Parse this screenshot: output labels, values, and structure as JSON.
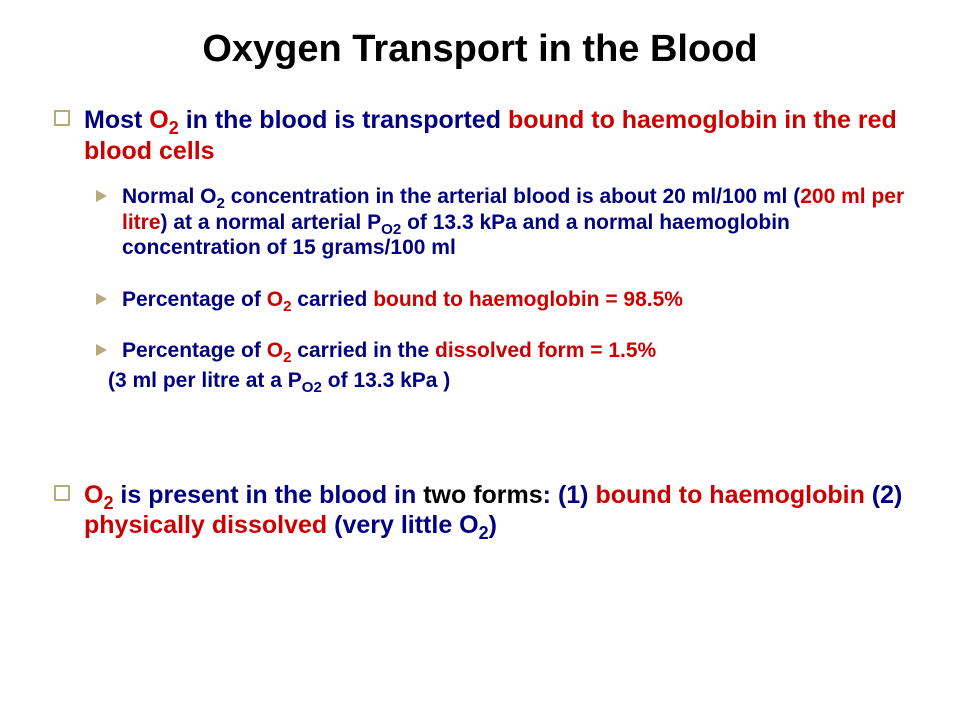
{
  "colors": {
    "navy": "#000080",
    "red": "#cc0000",
    "black": "#000000",
    "bullet_border": "#b9a87a",
    "background": "#ffffff"
  },
  "title": "Oxygen Transport in the Blood",
  "point1": {
    "p1a": "Most ",
    "p1b": "O",
    "p1b_sub": "2",
    "p1c": " in the blood is transported ",
    "p1d": "bound to haemoglobin in the red blood cells"
  },
  "sub1": {
    "s1a": "Normal O",
    "s1a_sub": "2",
    "s1b": " concentration in the arterial blood is about 20 ml/100 ml (",
    "s1c": "200 ml per litre",
    "s1d": ") at a normal arterial P",
    "s1d_sub": "O2",
    "s1e": " of 13.3 kPa and a normal haemoglobin concentration of 15 grams/100 ml"
  },
  "sub2": {
    "s2a": "Percentage of ",
    "s2b": "O",
    "s2b_sub": "2",
    "s2c": " carried ",
    "s2d": "bound to haemoglobin = 98.5%"
  },
  "sub3": {
    "s3a": "Percentage of ",
    "s3b": "O",
    "s3b_sub": "2",
    "s3c": " carried in the ",
    "s3d": "dissolved form = 1.5%"
  },
  "sub3_note": {
    "n1": "(3 ml per litre at a P",
    "n1_sub": "O2",
    "n2": " of 13.3 kPa )"
  },
  "point2": {
    "p2a": "O",
    "p2a_sub": "2",
    "p2b": " is present in the blood in ",
    "p2c": "two forms",
    "p2d": ": (1) ",
    "p2e": "bound to haemoglobin ",
    "p2f": "(2) ",
    "p2g": "physically dissolved ",
    "p2h": "(very little O",
    "p2h_sub": "2",
    "p2i": ")"
  }
}
